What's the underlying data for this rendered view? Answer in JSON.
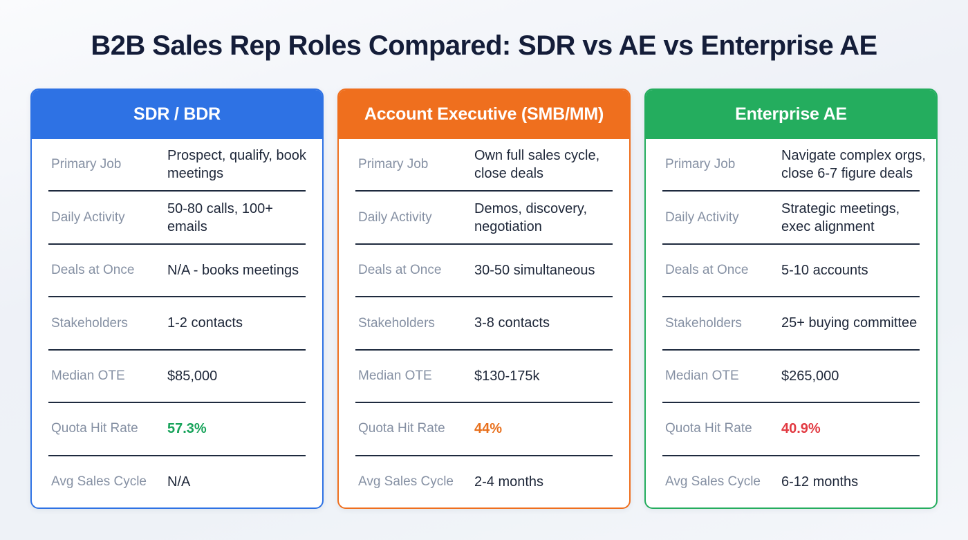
{
  "title": "B2B Sales Rep Roles Compared: SDR vs AE vs Enterprise AE",
  "colors": {
    "background": "#eef1f7",
    "title_text": "#141d39",
    "label_text": "#8590a3",
    "value_text": "#1d2638",
    "divider": "#1e2a3e",
    "blue_accent": "#2e72e4",
    "orange_accent": "#ef6f1e",
    "green_accent": "#24ad5e",
    "quota_green": "#17a35a",
    "quota_orange": "#e8701d",
    "quota_red": "#e23a42"
  },
  "cards": [
    {
      "title": "SDR / BDR",
      "accent": "#2e72e4",
      "rows": [
        {
          "label": "Primary Job",
          "value": "Prospect, qualify, book meetings"
        },
        {
          "label": "Daily Activity",
          "value": "50-80 calls, 100+ emails"
        },
        {
          "label": "Deals at Once",
          "value": "N/A - books meetings"
        },
        {
          "label": "Stakeholders",
          "value": "1-2 contacts"
        },
        {
          "label": "Median OTE",
          "value": "$85,000"
        },
        {
          "label": "Quota Hit Rate",
          "value": "57.3%",
          "value_color": "#17a35a"
        },
        {
          "label": "Avg Sales Cycle",
          "value": "N/A"
        }
      ]
    },
    {
      "title": "Account Executive (SMB/MM)",
      "accent": "#ef6f1e",
      "rows": [
        {
          "label": "Primary Job",
          "value": "Own full sales cycle, close deals"
        },
        {
          "label": "Daily Activity",
          "value": "Demos, discovery, negotiation"
        },
        {
          "label": "Deals at Once",
          "value": "30-50 simultaneous"
        },
        {
          "label": "Stakeholders",
          "value": "3-8 contacts"
        },
        {
          "label": "Median OTE",
          "value": "$130-175k"
        },
        {
          "label": "Quota Hit Rate",
          "value": "44%",
          "value_color": "#e8701d"
        },
        {
          "label": "Avg Sales Cycle",
          "value": "2-4 months"
        }
      ]
    },
    {
      "title": "Enterprise AE",
      "accent": "#24ad5e",
      "rows": [
        {
          "label": "Primary Job",
          "value": "Navigate complex orgs, close 6-7 figure deals"
        },
        {
          "label": "Daily Activity",
          "value": "Strategic meetings, exec alignment"
        },
        {
          "label": "Deals at Once",
          "value": "5-10 accounts"
        },
        {
          "label": "Stakeholders",
          "value": "25+ buying committee"
        },
        {
          "label": "Median OTE",
          "value": "$265,000"
        },
        {
          "label": "Quota Hit Rate",
          "value": "40.9%",
          "value_color": "#e23a42"
        },
        {
          "label": "Avg Sales Cycle",
          "value": "6-12 months"
        }
      ]
    }
  ],
  "chart_data": {
    "type": "table",
    "title": "B2B Sales Rep Roles Compared: SDR vs AE vs Enterprise AE",
    "row_headers": [
      "Primary Job",
      "Daily Activity",
      "Deals at Once",
      "Stakeholders",
      "Median OTE",
      "Quota Hit Rate",
      "Avg Sales Cycle"
    ],
    "columns": [
      {
        "name": "SDR / BDR",
        "values": [
          "Prospect, qualify, book meetings",
          "50-80 calls, 100+ emails",
          "N/A - books meetings",
          "1-2 contacts",
          "$85,000",
          "57.3%",
          "N/A"
        ]
      },
      {
        "name": "Account Executive (SMB/MM)",
        "values": [
          "Own full sales cycle, close deals",
          "Demos, discovery, negotiation",
          "30-50 simultaneous",
          "3-8 contacts",
          "$130-175k",
          "44%",
          "2-4 months"
        ]
      },
      {
        "name": "Enterprise AE",
        "values": [
          "Navigate complex orgs, close 6-7 figure deals",
          "Strategic meetings, exec alignment",
          "5-10 accounts",
          "25+ buying committee",
          "$265,000",
          "40.9%",
          "6-12 months"
        ]
      }
    ],
    "quota_hit_rates_numeric": [
      57.3,
      44.0,
      40.9
    ]
  }
}
